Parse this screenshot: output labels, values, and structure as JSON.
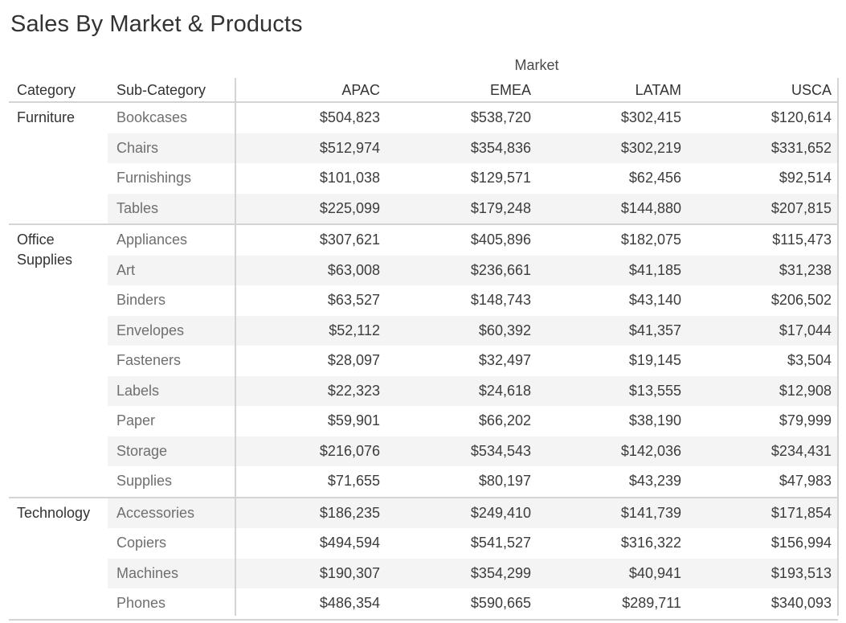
{
  "title": "Sales By Market & Products",
  "header": {
    "column_group_label": "Market",
    "category": "Category",
    "subcategory": "Sub-Category",
    "markets": [
      "APAC",
      "EMEA",
      "LATAM",
      "USCA"
    ]
  },
  "groups": [
    {
      "category": "Furniture",
      "rows": [
        {
          "sub": "Bookcases",
          "values": [
            "$504,823",
            "$538,720",
            "$302,415",
            "$120,614"
          ]
        },
        {
          "sub": "Chairs",
          "values": [
            "$512,974",
            "$354,836",
            "$302,219",
            "$331,652"
          ]
        },
        {
          "sub": "Furnishings",
          "values": [
            "$101,038",
            "$129,571",
            "$62,456",
            "$92,514"
          ]
        },
        {
          "sub": "Tables",
          "values": [
            "$225,099",
            "$179,248",
            "$144,880",
            "$207,815"
          ]
        }
      ]
    },
    {
      "category": "Office Supplies",
      "rows": [
        {
          "sub": "Appliances",
          "values": [
            "$307,621",
            "$405,896",
            "$182,075",
            "$115,473"
          ]
        },
        {
          "sub": "Art",
          "values": [
            "$63,008",
            "$236,661",
            "$41,185",
            "$31,238"
          ]
        },
        {
          "sub": "Binders",
          "values": [
            "$63,527",
            "$148,743",
            "$43,140",
            "$206,502"
          ]
        },
        {
          "sub": "Envelopes",
          "values": [
            "$52,112",
            "$60,392",
            "$41,357",
            "$17,044"
          ]
        },
        {
          "sub": "Fasteners",
          "values": [
            "$28,097",
            "$32,497",
            "$19,145",
            "$3,504"
          ]
        },
        {
          "sub": "Labels",
          "values": [
            "$22,323",
            "$24,618",
            "$13,555",
            "$12,908"
          ]
        },
        {
          "sub": "Paper",
          "values": [
            "$59,901",
            "$66,202",
            "$38,190",
            "$79,999"
          ]
        },
        {
          "sub": "Storage",
          "values": [
            "$216,076",
            "$534,543",
            "$142,036",
            "$234,431"
          ]
        },
        {
          "sub": "Supplies",
          "values": [
            "$71,655",
            "$80,197",
            "$43,239",
            "$47,983"
          ]
        }
      ]
    },
    {
      "category": "Technology",
      "rows": [
        {
          "sub": "Accessories",
          "values": [
            "$186,235",
            "$249,410",
            "$141,739",
            "$171,854"
          ]
        },
        {
          "sub": "Copiers",
          "values": [
            "$494,594",
            "$541,527",
            "$316,322",
            "$156,994"
          ]
        },
        {
          "sub": "Machines",
          "values": [
            "$190,307",
            "$354,299",
            "$40,941",
            "$193,513"
          ]
        },
        {
          "sub": "Phones",
          "values": [
            "$486,354",
            "$590,665",
            "$289,711",
            "$340,093"
          ]
        }
      ]
    }
  ],
  "colors": {
    "band": "#f4f4f4",
    "divider": "#d4d4d4",
    "text": "#333333",
    "subcategory_text": "#6f6f6f"
  },
  "chart_data": {
    "type": "table",
    "title": "Sales By Market & Products",
    "column_group": "Market",
    "row_headers": [
      "Category",
      "Sub-Category"
    ],
    "columns": [
      "APAC",
      "EMEA",
      "LATAM",
      "USCA"
    ],
    "rows": [
      {
        "category": "Furniture",
        "subcategory": "Bookcases",
        "values": [
          504823,
          538720,
          302415,
          120614
        ]
      },
      {
        "category": "Furniture",
        "subcategory": "Chairs",
        "values": [
          512974,
          354836,
          302219,
          331652
        ]
      },
      {
        "category": "Furniture",
        "subcategory": "Furnishings",
        "values": [
          101038,
          129571,
          62456,
          92514
        ]
      },
      {
        "category": "Furniture",
        "subcategory": "Tables",
        "values": [
          225099,
          179248,
          144880,
          207815
        ]
      },
      {
        "category": "Office Supplies",
        "subcategory": "Appliances",
        "values": [
          307621,
          405896,
          182075,
          115473
        ]
      },
      {
        "category": "Office Supplies",
        "subcategory": "Art",
        "values": [
          63008,
          236661,
          41185,
          31238
        ]
      },
      {
        "category": "Office Supplies",
        "subcategory": "Binders",
        "values": [
          63527,
          148743,
          43140,
          206502
        ]
      },
      {
        "category": "Office Supplies",
        "subcategory": "Envelopes",
        "values": [
          52112,
          60392,
          41357,
          17044
        ]
      },
      {
        "category": "Office Supplies",
        "subcategory": "Fasteners",
        "values": [
          28097,
          32497,
          19145,
          3504
        ]
      },
      {
        "category": "Office Supplies",
        "subcategory": "Labels",
        "values": [
          22323,
          24618,
          13555,
          12908
        ]
      },
      {
        "category": "Office Supplies",
        "subcategory": "Paper",
        "values": [
          59901,
          66202,
          38190,
          79999
        ]
      },
      {
        "category": "Office Supplies",
        "subcategory": "Storage",
        "values": [
          216076,
          534543,
          142036,
          234431
        ]
      },
      {
        "category": "Office Supplies",
        "subcategory": "Supplies",
        "values": [
          71655,
          80197,
          43239,
          47983
        ]
      },
      {
        "category": "Technology",
        "subcategory": "Accessories",
        "values": [
          186235,
          249410,
          141739,
          171854
        ]
      },
      {
        "category": "Technology",
        "subcategory": "Copiers",
        "values": [
          494594,
          541527,
          316322,
          156994
        ]
      },
      {
        "category": "Technology",
        "subcategory": "Machines",
        "values": [
          190307,
          354299,
          40941,
          193513
        ]
      },
      {
        "category": "Technology",
        "subcategory": "Phones",
        "values": [
          486354,
          590665,
          289711,
          340093
        ]
      }
    ],
    "value_format": "currency USD, no decimals"
  }
}
